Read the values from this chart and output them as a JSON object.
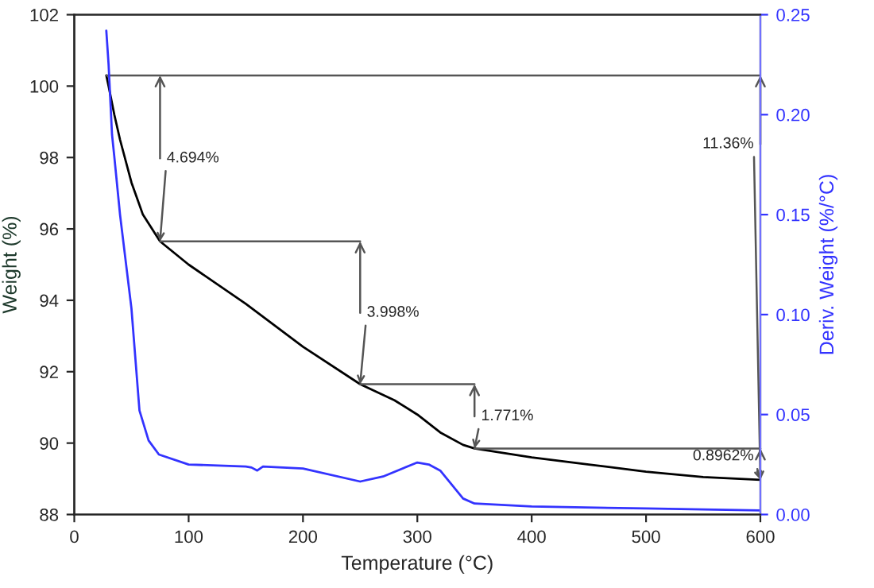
{
  "chart_data": {
    "type": "line",
    "xlabel": "Temperature (°C)",
    "ylabel": "Weight (%)",
    "y2label": "Deriv. Weight (%/°C)",
    "xlim": [
      0,
      600
    ],
    "xticks": [
      0,
      100,
      200,
      300,
      400,
      500,
      600
    ],
    "ylim": [
      88,
      102
    ],
    "yticks": [
      88,
      90,
      92,
      94,
      96,
      98,
      100,
      102
    ],
    "y2lim": [
      0,
      0.25
    ],
    "y2ticks": [
      {
        "value": 0,
        "label": "0.00"
      },
      {
        "value": 0.05,
        "label": "0.05"
      },
      {
        "value": 0.1,
        "label": "0.10"
      },
      {
        "value": 0.15,
        "label": "0.15"
      },
      {
        "value": 0.2,
        "label": "0.20"
      },
      {
        "value": 0.25,
        "label": "0.25"
      }
    ],
    "grid": false,
    "legend": false,
    "series": [
      {
        "color": "#000000",
        "x": [
          28,
          30,
          35,
          40,
          50,
          60,
          75,
          100,
          150,
          200,
          250,
          280,
          300,
          320,
          340,
          350,
          400,
          450,
          500,
          550,
          600
        ],
        "values": [
          100.3,
          100.0,
          99.2,
          98.5,
          97.3,
          96.4,
          95.65,
          95.0,
          93.9,
          92.7,
          91.65,
          91.2,
          90.8,
          90.3,
          89.95,
          89.85,
          89.6,
          89.4,
          89.2,
          89.05,
          88.97
        ]
      },
      {
        "color": "#3333ff",
        "axis": "y2",
        "x": [
          28,
          30,
          33,
          35,
          40,
          50,
          57,
          65,
          74,
          100,
          150,
          155,
          160,
          165,
          200,
          250,
          270,
          300,
          310,
          320,
          340,
          350,
          400,
          500,
          600
        ],
        "values": [
          0.242,
          0.225,
          0.19,
          0.179,
          0.15,
          0.103,
          0.052,
          0.037,
          0.03,
          0.025,
          0.024,
          0.0235,
          0.022,
          0.024,
          0.023,
          0.0165,
          0.019,
          0.026,
          0.025,
          0.022,
          0.008,
          0.0055,
          0.004,
          0.003,
          0.002
        ]
      }
    ],
    "ref_lines": [
      {
        "axis": "y",
        "value": 100.3,
        "color": "#555555"
      }
    ],
    "annotations": [
      {
        "text": "4.694%",
        "x": 75,
        "y": 95.65
      },
      {
        "text": "3.998%",
        "x": 250,
        "y": 91.65
      },
      {
        "text": "1.771%",
        "x": 350,
        "y": 89.85
      },
      {
        "text": "0.8962%",
        "x": 600,
        "y": 88.97
      },
      {
        "text": "11.36%",
        "x": 600,
        "y": 88.97
      }
    ]
  }
}
